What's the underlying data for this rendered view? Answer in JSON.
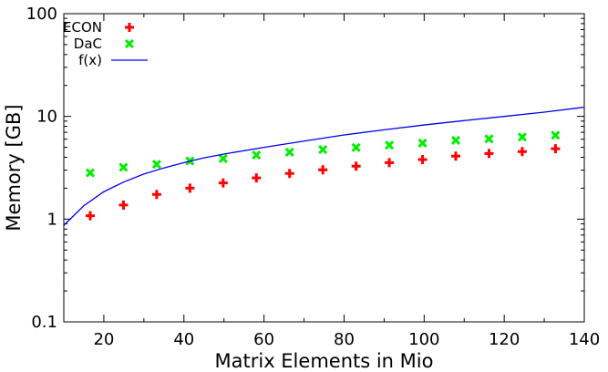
{
  "chart_data": {
    "type": "scatter",
    "title": "",
    "xlabel": "Matrix Elements in Mio",
    "ylabel": "Memory [GB]",
    "xlim": [
      10,
      140
    ],
    "ylim": [
      0.1,
      100
    ],
    "yscale": "log",
    "grid": false,
    "legend_position": "top-left",
    "x_ticks": [
      20,
      40,
      60,
      80,
      100,
      120,
      140
    ],
    "x_tick_labels": [
      "20",
      "40",
      "60",
      "80",
      "100",
      "120",
      "140"
    ],
    "y_ticks": [
      0.1,
      1,
      10,
      100
    ],
    "y_tick_labels": [
      "0.1",
      "1",
      "10",
      "100"
    ],
    "series": [
      {
        "name": "ECON",
        "marker": "plus",
        "color": "#ff0000",
        "x": [
          16.6,
          24.9,
          33.2,
          41.5,
          49.8,
          58.1,
          66.4,
          74.7,
          83.0,
          91.3,
          99.6,
          107.9,
          116.2,
          124.5,
          132.8
        ],
        "y": [
          1.08,
          1.37,
          1.74,
          2.0,
          2.25,
          2.52,
          2.78,
          3.02,
          3.28,
          3.55,
          3.8,
          4.1,
          4.35,
          4.55,
          4.85
        ]
      },
      {
        "name": "DaC",
        "marker": "x",
        "color": "#00ee00",
        "x": [
          16.6,
          24.9,
          33.2,
          41.5,
          49.8,
          58.1,
          66.4,
          74.7,
          83.0,
          91.3,
          99.6,
          107.9,
          116.2,
          124.5,
          132.8
        ],
        "y": [
          2.82,
          3.2,
          3.42,
          3.68,
          3.88,
          4.2,
          4.48,
          4.75,
          4.98,
          5.25,
          5.5,
          5.85,
          6.05,
          6.3,
          6.55
        ]
      },
      {
        "name": "f(x)",
        "line": true,
        "color": "#0000ee",
        "x": [
          10,
          15,
          20,
          25,
          30,
          35,
          40,
          45,
          50,
          60,
          70,
          80,
          90,
          100,
          110,
          120,
          130,
          140
        ],
        "y": [
          0.87,
          1.35,
          1.85,
          2.3,
          2.75,
          3.15,
          3.55,
          3.95,
          4.3,
          5.0,
          5.75,
          6.6,
          7.4,
          8.25,
          9.1,
          10.0,
          11.0,
          12.3
        ]
      }
    ]
  }
}
